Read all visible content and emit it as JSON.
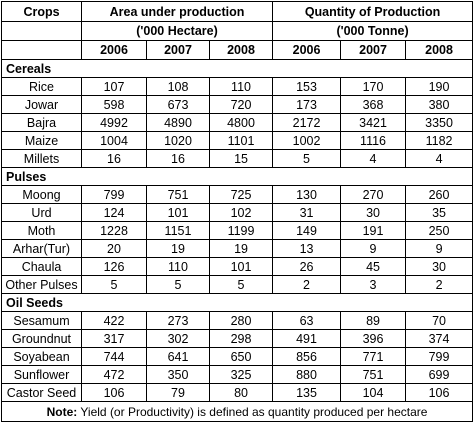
{
  "headers": {
    "crops": "Crops",
    "area": "Area under production",
    "area_unit": "('000 Hectare)",
    "quantity": "Quantity of Production",
    "quantity_unit": "('000 Tonne)",
    "years": [
      "2006",
      "2007",
      "2008"
    ]
  },
  "groups": [
    {
      "name": "Cereals",
      "rows": [
        {
          "crop": "Rice",
          "area": [
            "107",
            "108",
            "110"
          ],
          "qty": [
            "153",
            "170",
            "190"
          ]
        },
        {
          "crop": "Jowar",
          "area": [
            "598",
            "673",
            "720"
          ],
          "qty": [
            "173",
            "368",
            "380"
          ]
        },
        {
          "crop": "Bajra",
          "area": [
            "4992",
            "4890",
            "4800"
          ],
          "qty": [
            "2172",
            "3421",
            "3350"
          ]
        },
        {
          "crop": "Maize",
          "area": [
            "1004",
            "1020",
            "1101"
          ],
          "qty": [
            "1002",
            "1116",
            "1182"
          ]
        },
        {
          "crop": "Millets",
          "area": [
            "16",
            "16",
            "15"
          ],
          "qty": [
            "5",
            "4",
            "4"
          ]
        }
      ]
    },
    {
      "name": "Pulses",
      "rows": [
        {
          "crop": "Moong",
          "area": [
            "799",
            "751",
            "725"
          ],
          "qty": [
            "130",
            "270",
            "260"
          ]
        },
        {
          "crop": "Urd",
          "area": [
            "124",
            "101",
            "102"
          ],
          "qty": [
            "31",
            "30",
            "35"
          ]
        },
        {
          "crop": "Moth",
          "area": [
            "1228",
            "1151",
            "1199"
          ],
          "qty": [
            "149",
            "191",
            "250"
          ]
        },
        {
          "crop": "Arhar(Tur)",
          "area": [
            "20",
            "19",
            "19"
          ],
          "qty": [
            "13",
            "9",
            "9"
          ]
        },
        {
          "crop": "Chaula",
          "area": [
            "126",
            "110",
            "101"
          ],
          "qty": [
            "26",
            "45",
            "30"
          ]
        },
        {
          "crop": "Other Pulses",
          "area": [
            "5",
            "5",
            "5"
          ],
          "qty": [
            "2",
            "3",
            "2"
          ]
        }
      ]
    },
    {
      "name": "Oil Seeds",
      "rows": [
        {
          "crop": "Sesamum",
          "area": [
            "422",
            "273",
            "280"
          ],
          "qty": [
            "63",
            "89",
            "70"
          ]
        },
        {
          "crop": "Groundnut",
          "area": [
            "317",
            "302",
            "298"
          ],
          "qty": [
            "491",
            "396",
            "374"
          ]
        },
        {
          "crop": "Soyabean",
          "area": [
            "744",
            "641",
            "650"
          ],
          "qty": [
            "856",
            "771",
            "799"
          ]
        },
        {
          "crop": "Sunflower",
          "area": [
            "472",
            "350",
            "325"
          ],
          "qty": [
            "880",
            "751",
            "699"
          ]
        },
        {
          "crop": "Castor Seed",
          "area": [
            "106",
            "79",
            "80"
          ],
          "qty": [
            "135",
            "104",
            "106"
          ]
        }
      ]
    }
  ],
  "note": {
    "label": "Note:",
    "text": " Yield (or Productivity) is defined as quantity produced per hectare"
  }
}
